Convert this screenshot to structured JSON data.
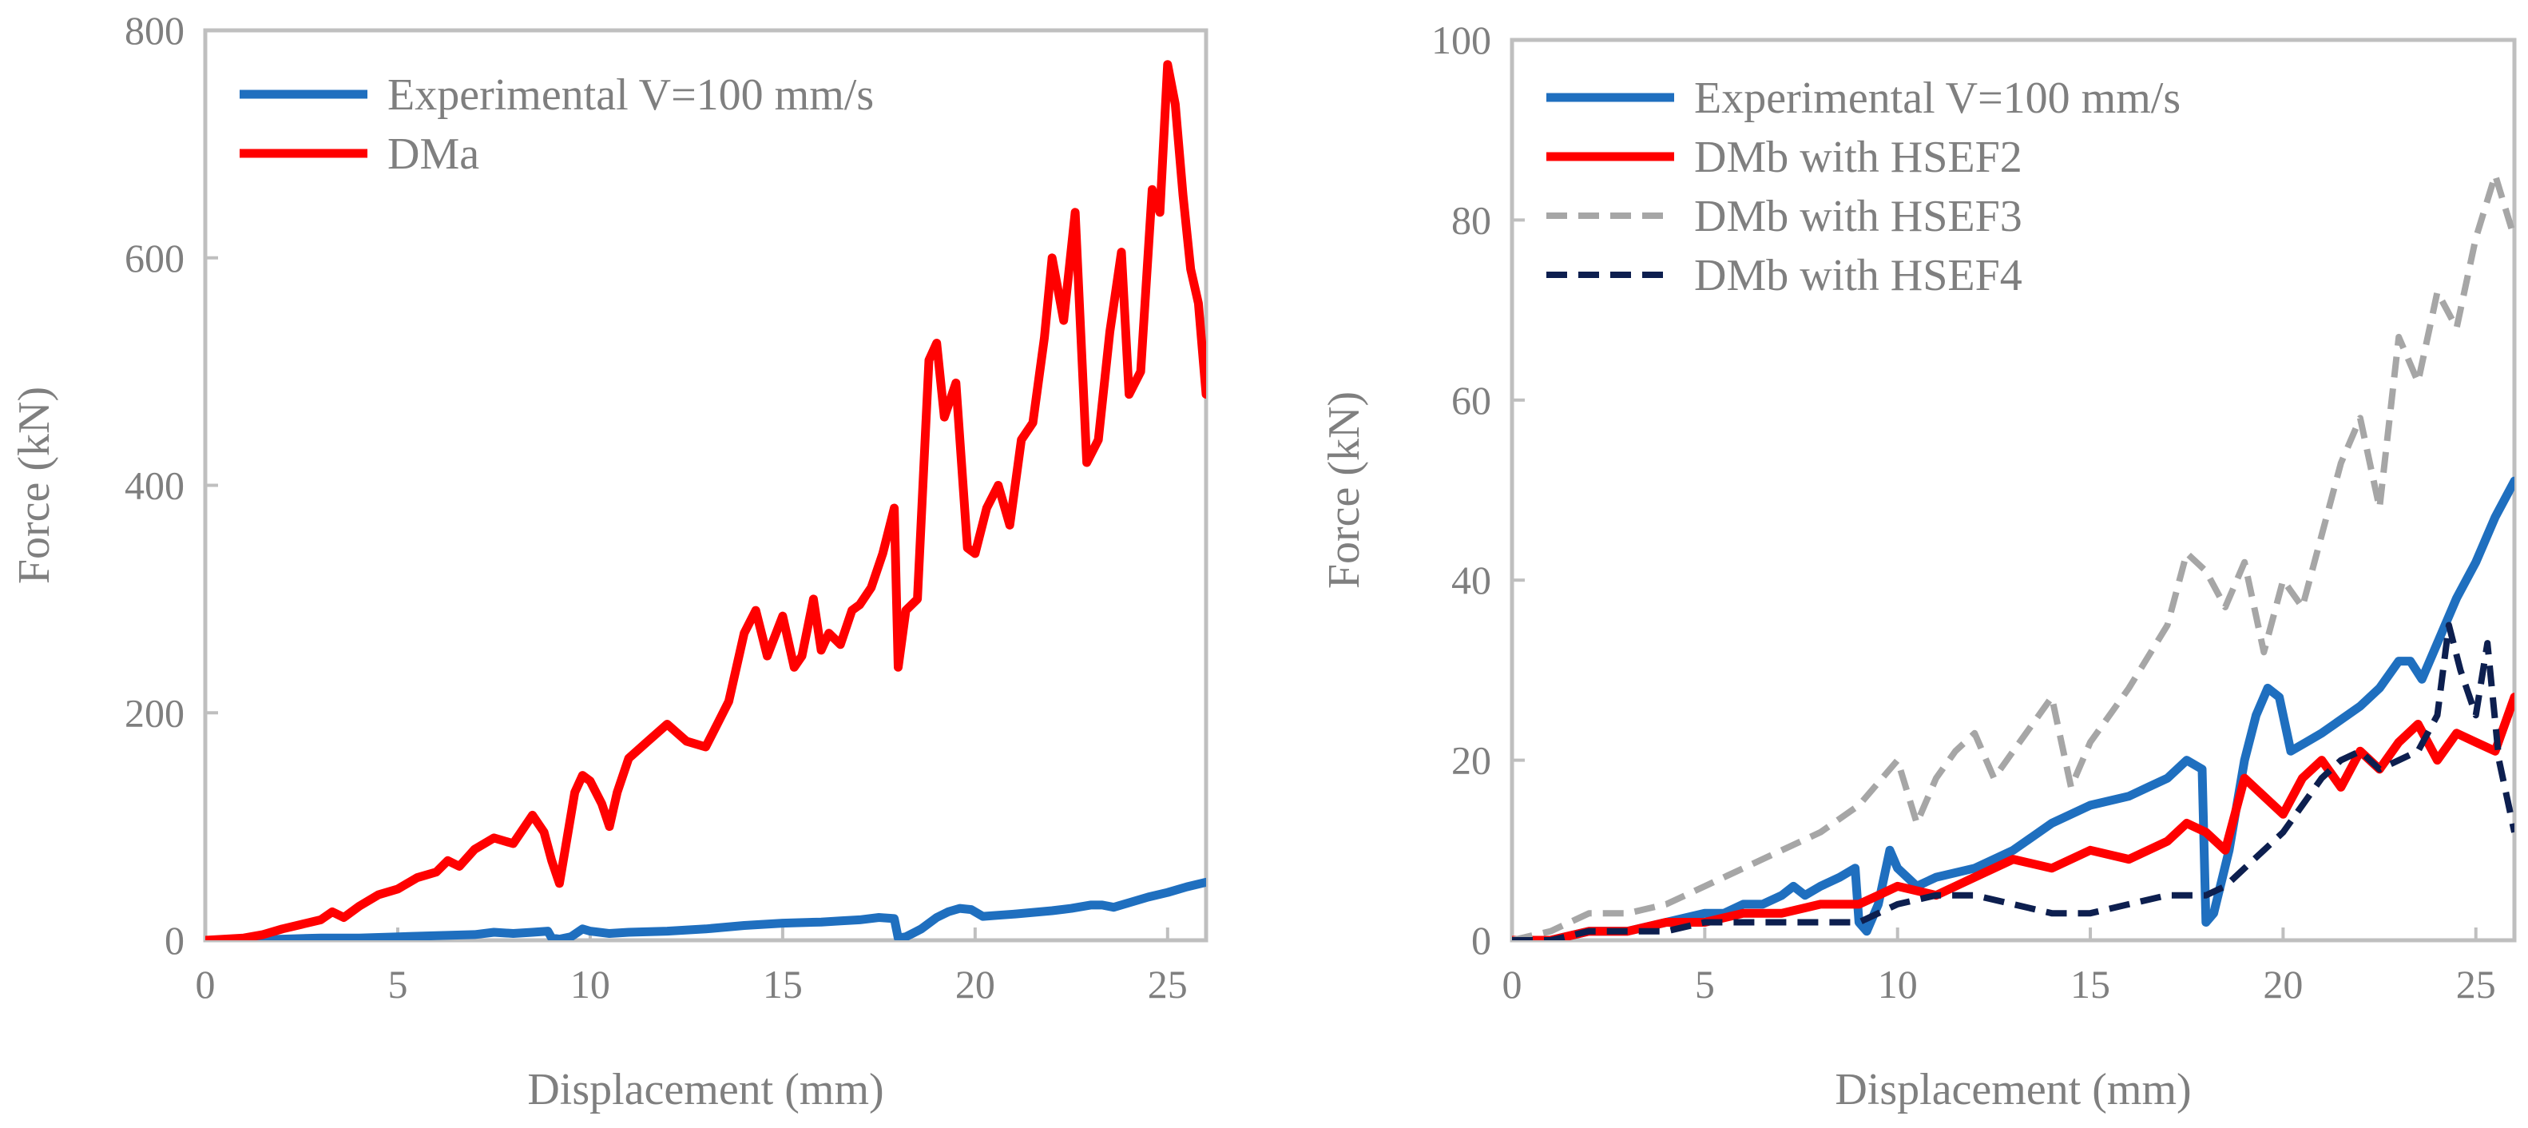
{
  "chart_data": [
    {
      "type": "line",
      "xlabel": "Displacement (mm)",
      "ylabel": "Force (kN)",
      "xlim": [
        0,
        26
      ],
      "ylim": [
        0,
        800
      ],
      "xticks": [
        0,
        5,
        10,
        15,
        20,
        25
      ],
      "yticks": [
        0,
        200,
        400,
        600,
        800
      ],
      "legend_position": "top-left",
      "series": [
        {
          "name": "Experimental V=100 mm/s",
          "color": "#1f6fbf",
          "style": "solid",
          "x": [
            0,
            1,
            2,
            3,
            4,
            5,
            6,
            7,
            7.5,
            8,
            8.5,
            8.9,
            9.0,
            9.2,
            9.5,
            9.8,
            10,
            10.5,
            11,
            12,
            13,
            14,
            15,
            16,
            16.5,
            17,
            17.5,
            17.9,
            18.0,
            18.2,
            18.6,
            19,
            19.3,
            19.6,
            19.9,
            20.2,
            20.6,
            21,
            22,
            22.5,
            23,
            23.3,
            23.6,
            24,
            24.5,
            25,
            25.5,
            26
          ],
          "y": [
            0,
            0,
            1,
            2,
            2,
            3,
            4,
            5,
            7,
            6,
            7,
            8,
            2,
            1,
            3,
            10,
            8,
            6,
            7,
            8,
            10,
            13,
            15,
            16,
            17,
            18,
            20,
            19,
            2,
            3,
            10,
            20,
            25,
            28,
            27,
            21,
            22,
            23,
            26,
            28,
            31,
            31,
            29,
            33,
            38,
            42,
            47,
            51
          ]
        },
        {
          "name": "DMa",
          "color": "#ff0000",
          "style": "solid",
          "x": [
            0,
            1,
            1.5,
            2,
            2.5,
            3,
            3.3,
            3.6,
            4,
            4.5,
            5,
            5.5,
            6,
            6.3,
            6.6,
            7,
            7.5,
            8,
            8.5,
            8.8,
            9.0,
            9.2,
            9.4,
            9.6,
            9.8,
            10,
            10.3,
            10.5,
            10.7,
            11,
            11.5,
            12,
            12.5,
            13,
            13.3,
            13.6,
            14,
            14.3,
            14.6,
            15,
            15.3,
            15.5,
            15.8,
            16,
            16.2,
            16.5,
            16.8,
            17,
            17.3,
            17.6,
            17.9,
            18.0,
            18.2,
            18.5,
            18.8,
            19,
            19.2,
            19.5,
            19.8,
            20,
            20.3,
            20.6,
            20.9,
            21.2,
            21.5,
            21.8,
            22,
            22.3,
            22.6,
            22.9,
            23.2,
            23.5,
            23.8,
            24,
            24.3,
            24.6,
            24.8,
            25,
            25.2,
            25.4,
            25.6,
            25.8,
            26
          ],
          "y": [
            0,
            2,
            5,
            10,
            14,
            18,
            25,
            20,
            30,
            40,
            45,
            55,
            60,
            70,
            65,
            80,
            90,
            85,
            110,
            95,
            70,
            50,
            90,
            130,
            145,
            140,
            120,
            100,
            130,
            160,
            175,
            190,
            175,
            170,
            190,
            210,
            270,
            290,
            250,
            285,
            240,
            250,
            300,
            255,
            270,
            260,
            290,
            295,
            310,
            340,
            380,
            240,
            290,
            300,
            510,
            525,
            460,
            490,
            345,
            340,
            380,
            400,
            365,
            440,
            455,
            530,
            600,
            545,
            640,
            420,
            440,
            535,
            605,
            480,
            500,
            660,
            640,
            770,
            735,
            655,
            590,
            560,
            480
          ]
        }
      ]
    },
    {
      "type": "line",
      "xlabel": "Displacement (mm)",
      "ylabel": "Force (kN)",
      "xlim": [
        0,
        26
      ],
      "ylim": [
        0,
        100
      ],
      "xticks": [
        0,
        5,
        10,
        15,
        20,
        25
      ],
      "yticks": [
        0,
        20,
        40,
        60,
        80,
        100
      ],
      "legend_position": "top-left",
      "series": [
        {
          "name": "Experimental V=100 mm/s",
          "color": "#1f6fbf",
          "style": "solid",
          "x": [
            0,
            1,
            2,
            3,
            4,
            5,
            5.5,
            6,
            6.5,
            7,
            7.3,
            7.6,
            8,
            8.5,
            8.9,
            9.0,
            9.2,
            9.5,
            9.8,
            10,
            10.5,
            11,
            12,
            13,
            14,
            15,
            16,
            16.5,
            17,
            17.5,
            17.9,
            18.0,
            18.2,
            18.6,
            19,
            19.3,
            19.6,
            19.9,
            20.2,
            20.6,
            21,
            22,
            22.5,
            23,
            23.3,
            23.6,
            24,
            24.5,
            25,
            25.5,
            26
          ],
          "y": [
            0,
            0,
            1,
            1,
            2,
            3,
            3,
            4,
            4,
            5,
            6,
            5,
            6,
            7,
            8,
            2,
            1,
            4,
            10,
            8,
            6,
            7,
            8,
            10,
            13,
            15,
            16,
            17,
            18,
            20,
            19,
            2,
            3,
            10,
            20,
            25,
            28,
            27,
            21,
            22,
            23,
            26,
            28,
            31,
            31,
            29,
            33,
            38,
            42,
            47,
            51
          ]
        },
        {
          "name": "DMb with HSEF2",
          "color": "#ff0000",
          "style": "solid",
          "x": [
            0,
            1,
            2,
            3,
            4,
            5,
            6,
            7,
            8,
            9,
            9.5,
            10,
            11,
            12,
            13,
            14,
            15,
            16,
            17,
            17.5,
            18,
            18.5,
            19,
            19.5,
            20,
            20.5,
            21,
            21.5,
            22,
            22.5,
            23,
            23.5,
            24,
            24.5,
            25,
            25.5,
            26
          ],
          "y": [
            0,
            0,
            1,
            1,
            2,
            2,
            3,
            3,
            4,
            4,
            5,
            6,
            5,
            7,
            9,
            8,
            10,
            9,
            11,
            13,
            12,
            10,
            18,
            16,
            14,
            18,
            20,
            17,
            21,
            19,
            22,
            24,
            20,
            23,
            22,
            21,
            27
          ]
        },
        {
          "name": "DMb with HSEF3",
          "color": "#a6a6a6",
          "style": "dashed",
          "x": [
            0,
            1,
            2,
            3,
            4,
            5,
            6,
            7,
            8,
            9,
            10,
            10.5,
            11,
            11.5,
            12,
            12.5,
            13,
            13.5,
            14,
            14.5,
            15,
            16,
            17,
            17.5,
            18,
            18.5,
            19,
            19.5,
            20,
            20.5,
            21,
            21.5,
            22,
            22.5,
            23,
            23.5,
            24,
            24.5,
            25,
            25.5,
            26
          ],
          "y": [
            0,
            1,
            3,
            3,
            4,
            6,
            8,
            10,
            12,
            15,
            20,
            13,
            18,
            21,
            23,
            18,
            21,
            24,
            27,
            17,
            22,
            28,
            35,
            43,
            41,
            37,
            42,
            32,
            40,
            37,
            45,
            53,
            58,
            48,
            67,
            62,
            72,
            68,
            78,
            85,
            78
          ]
        },
        {
          "name": "DMb with HSEF4",
          "color": "#0d1f4f",
          "style": "dashed",
          "x": [
            0,
            1,
            2,
            3,
            4,
            5,
            6,
            7,
            8,
            9,
            10,
            11,
            12,
            13,
            14,
            15,
            16,
            17,
            18,
            18.5,
            19,
            19.5,
            20,
            20.5,
            21,
            21.5,
            22,
            22.5,
            23,
            23.5,
            24,
            24.3,
            24.6,
            25,
            25.3,
            25.6,
            26
          ],
          "y": [
            0,
            0,
            1,
            1,
            1,
            2,
            2,
            2,
            2,
            2,
            4,
            5,
            5,
            4,
            3,
            3,
            4,
            5,
            5,
            6,
            8,
            10,
            12,
            15,
            18,
            20,
            21,
            19,
            20,
            21,
            25,
            35,
            30,
            25,
            33,
            20,
            12
          ]
        }
      ]
    }
  ]
}
